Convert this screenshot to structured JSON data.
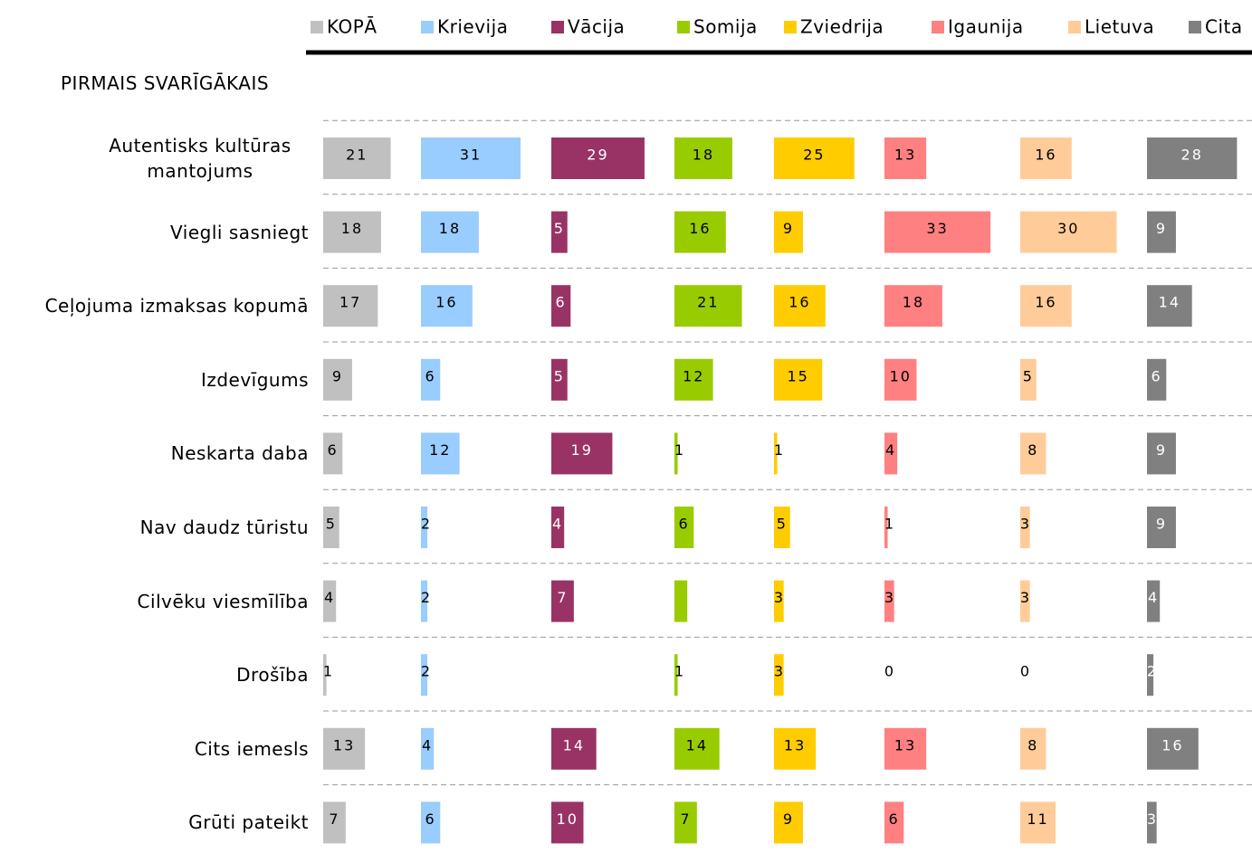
{
  "chart_data": {
    "type": "bar",
    "subtitle": "PIRMAIS SVARĪGĀKAIS",
    "categories": [
      "Autentisks kultūras mantojums",
      "Viegli sasniegt",
      "Ceļojuma izmaksas kopumā",
      "Izdevīgums",
      "Neskarta daba",
      "Nav daudz tūristu",
      "Cilvēku viesmīlība",
      "Drošība",
      "Cits iemesls",
      "Grūti pateikt"
    ],
    "series": [
      {
        "name": "KOPĀ",
        "color": "#c0c0c0",
        "values": [
          21,
          18,
          17,
          9,
          6,
          5,
          4,
          1,
          13,
          7
        ]
      },
      {
        "name": "Krievija",
        "color": "#99ccff",
        "values": [
          31,
          18,
          16,
          6,
          12,
          2,
          2,
          2,
          4,
          6
        ]
      },
      {
        "name": "Vācija",
        "color": "#993366",
        "values": [
          29,
          5,
          6,
          5,
          19,
          4,
          7,
          null,
          14,
          10
        ]
      },
      {
        "name": "Somija",
        "color": "#99cc00",
        "values": [
          18,
          16,
          21,
          12,
          1,
          6,
          4,
          1,
          14,
          7
        ],
        "value_labels": [
          "18",
          "16",
          "21",
          "12",
          "1",
          "6",
          null,
          "1",
          "14",
          "7"
        ]
      },
      {
        "name": "Zviedrija",
        "color": "#ffcc00",
        "values": [
          25,
          9,
          16,
          15,
          1,
          5,
          3,
          3,
          13,
          9
        ]
      },
      {
        "name": "Igaunija",
        "color": "#ff8080",
        "values": [
          13,
          33,
          18,
          10,
          4,
          1,
          3,
          0,
          13,
          6
        ]
      },
      {
        "name": "Lietuva",
        "color": "#ffcc99",
        "values": [
          16,
          30,
          16,
          5,
          8,
          3,
          3,
          0,
          8,
          11
        ]
      },
      {
        "name": "Cita",
        "color": "#808080",
        "values": [
          28,
          9,
          14,
          6,
          9,
          9,
          4,
          2,
          16,
          3
        ]
      }
    ]
  }
}
